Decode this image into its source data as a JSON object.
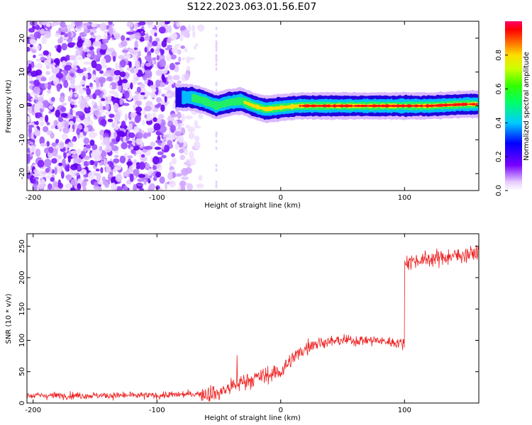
{
  "title": "S122.2023.063.01.56.E07",
  "chart_data": [
    {
      "type": "heatmap",
      "xlabel": "Height of straight line (km)",
      "ylabel": "Frequency (Hz)",
      "xlim": [
        -205,
        160
      ],
      "ylim": [
        -25,
        25
      ],
      "xticks": [
        -200,
        -100,
        0,
        100
      ],
      "yticks": [
        -20,
        -10,
        0,
        10,
        20
      ],
      "colorbar": {
        "label": "Normalized spectral amplitude",
        "range": [
          0,
          1
        ],
        "ticks": [
          0.0,
          0.2,
          0.4,
          0.6,
          0.8
        ]
      },
      "signal_band": {
        "x": [
          -82,
          -72,
          -62,
          -52,
          -42,
          -32,
          -22,
          -12,
          0,
          15,
          30,
          60,
          90,
          120,
          150,
          160
        ],
        "freq_hz": [
          2.5,
          2.5,
          1.5,
          0.0,
          1.0,
          1.5,
          0.0,
          -1.0,
          -0.5,
          0.0,
          0.0,
          0.0,
          0.0,
          0.0,
          0.5,
          0.5
        ]
      },
      "noise_region_x": [
        -205,
        -65
      ]
    },
    {
      "type": "line",
      "xlabel": "Height of straight line (km)",
      "ylabel": "SNR (10 * v/v)",
      "xlim": [
        -205,
        160
      ],
      "ylim": [
        0,
        270
      ],
      "xticks": [
        -200,
        -100,
        0,
        100
      ],
      "yticks": [
        0,
        50,
        100,
        150,
        200,
        250
      ],
      "color": "#ee2222",
      "trend": {
        "x": [
          -205,
          -100,
          -50,
          -30,
          0,
          10,
          25,
          50,
          75,
          100,
          100.2,
          130,
          160
        ],
        "y": [
          12,
          12,
          16,
          35,
          50,
          72,
          95,
          100,
          100,
          95,
          225,
          232,
          240
        ]
      }
    }
  ]
}
